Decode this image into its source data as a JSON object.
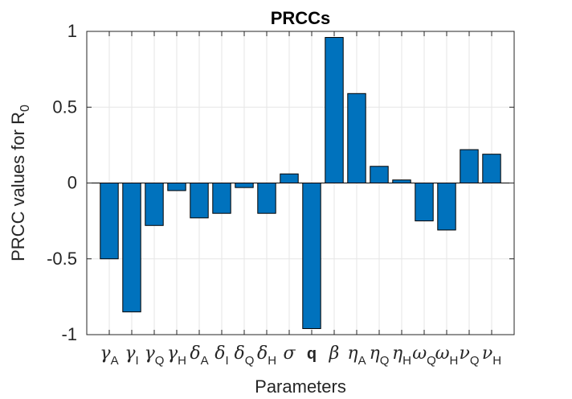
{
  "chart_data": {
    "type": "bar",
    "title": "PRCCs",
    "xlabel": "Parameters",
    "ylabel_main": "PRCC values for R",
    "ylabel_sub": "0",
    "ylim": [
      -1,
      1
    ],
    "yticks": [
      "-1",
      "-0.5",
      "0",
      "0.5",
      "1"
    ],
    "ytick_values": [
      -1,
      -0.5,
      0,
      0.5,
      1
    ],
    "grid": true,
    "bar_color": "#0072BD",
    "categories": [
      {
        "main": "γ",
        "sub": "A"
      },
      {
        "main": "γ",
        "sub": "I"
      },
      {
        "main": "γ",
        "sub": "Q"
      },
      {
        "main": "γ",
        "sub": "H"
      },
      {
        "main": "δ",
        "sub": "A"
      },
      {
        "main": "δ",
        "sub": "I"
      },
      {
        "main": "δ",
        "sub": "Q"
      },
      {
        "main": "δ",
        "sub": "H"
      },
      {
        "main": "σ",
        "sub": ""
      },
      {
        "main": "q",
        "sub": ""
      },
      {
        "main": "β",
        "sub": ""
      },
      {
        "main": "η",
        "sub": "A"
      },
      {
        "main": "η",
        "sub": "Q"
      },
      {
        "main": "η",
        "sub": "H"
      },
      {
        "main": "ω",
        "sub": "Q"
      },
      {
        "main": "ω",
        "sub": "H"
      },
      {
        "main": "ν",
        "sub": "Q"
      },
      {
        "main": "ν",
        "sub": "H"
      }
    ],
    "values": [
      -0.5,
      -0.85,
      -0.28,
      -0.05,
      -0.23,
      -0.2,
      -0.03,
      -0.2,
      0.06,
      -0.96,
      0.96,
      0.59,
      0.11,
      0.02,
      -0.25,
      -0.31,
      0.22,
      0.19
    ]
  }
}
